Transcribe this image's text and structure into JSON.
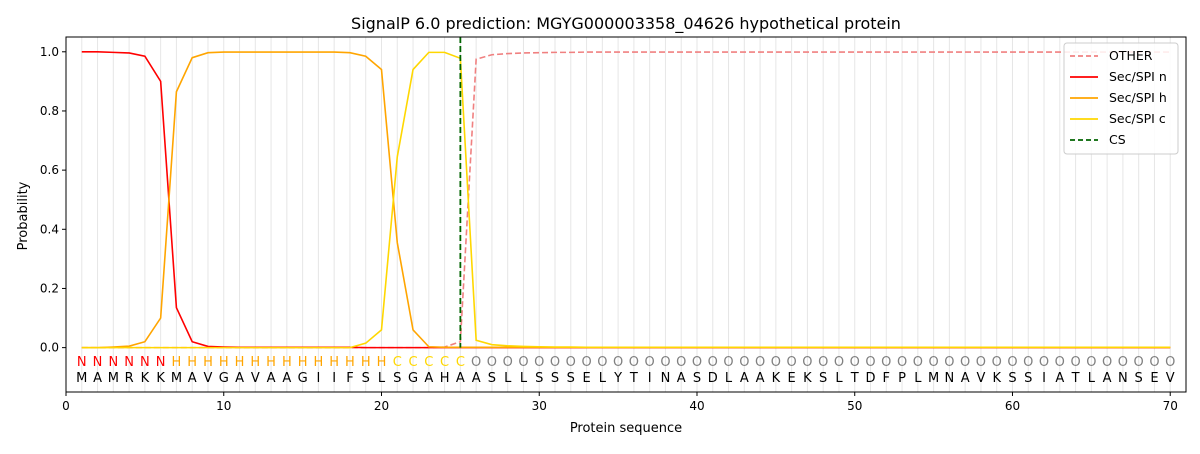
{
  "chart_data": {
    "type": "line",
    "title": "SignalP 6.0 prediction: MGYG000003358_04626 hypothetical protein",
    "xlabel": "Protein sequence",
    "ylabel": "Probability",
    "xlim": [
      0,
      71
    ],
    "ylim": [
      -0.15,
      1.05
    ],
    "xticks": [
      0,
      10,
      20,
      30,
      40,
      50,
      60,
      70
    ],
    "yticks": [
      0.0,
      0.2,
      0.4,
      0.6,
      0.8,
      1.0
    ],
    "grid": "vertical lines at each residue",
    "legend_position": "top-right",
    "cleavage_site": 25,
    "sequence": [
      "M",
      "A",
      "M",
      "R",
      "K",
      "K",
      "M",
      "A",
      "V",
      "G",
      "A",
      "V",
      "A",
      "A",
      "G",
      "I",
      "I",
      "F",
      "S",
      "L",
      "S",
      "G",
      "A",
      "H",
      "A",
      "A",
      "S",
      "L",
      "L",
      "S",
      "S",
      "S",
      "E",
      "L",
      "Y",
      "T",
      "I",
      "N",
      "A",
      "S",
      "D",
      "L",
      "A",
      "A",
      "K",
      "E",
      "K",
      "S",
      "L",
      "T",
      "D",
      "F",
      "P",
      "L",
      "M",
      "N",
      "A",
      "V",
      "K",
      "S",
      "S",
      "I",
      "A",
      "T",
      "L",
      "A",
      "N",
      "S",
      "E",
      "V"
    ],
    "labels": [
      "N",
      "N",
      "N",
      "N",
      "N",
      "N",
      "H",
      "H",
      "H",
      "H",
      "H",
      "H",
      "H",
      "H",
      "H",
      "H",
      "H",
      "H",
      "H",
      "H",
      "C",
      "C",
      "C",
      "C",
      "C",
      "O",
      "O",
      "O",
      "O",
      "O",
      "O",
      "O",
      "O",
      "O",
      "O",
      "O",
      "O",
      "O",
      "O",
      "O",
      "O",
      "O",
      "O",
      "O",
      "O",
      "O",
      "O",
      "O",
      "O",
      "O",
      "O",
      "O",
      "O",
      "O",
      "O",
      "O",
      "O",
      "O",
      "O",
      "O",
      "O",
      "O",
      "O",
      "O",
      "O",
      "O",
      "O",
      "O",
      "O",
      "O"
    ],
    "label_colors": {
      "N": "#ff0000",
      "H": "#ffa500",
      "C": "#ffd700",
      "O": "#808080"
    },
    "series": [
      {
        "name": "OTHER",
        "color": "#f08080",
        "dash": true,
        "values": [
          0,
          0,
          0,
          0,
          0,
          0,
          0,
          0,
          0,
          0,
          0,
          0,
          0,
          0,
          0,
          0,
          0,
          0,
          0,
          0,
          0,
          0,
          0,
          0.002,
          0.02,
          0.975,
          0.99,
          0.994,
          0.996,
          0.997,
          0.998,
          0.998,
          0.999,
          0.999,
          0.999,
          0.999,
          0.999,
          0.999,
          0.999,
          0.999,
          0.999,
          0.999,
          0.999,
          0.999,
          0.999,
          0.999,
          0.999,
          0.999,
          0.999,
          0.999,
          0.999,
          0.999,
          0.999,
          0.999,
          0.999,
          0.999,
          0.999,
          0.999,
          0.999,
          0.999,
          0.999,
          0.999,
          0.999,
          0.999,
          0.999,
          0.999,
          0.999,
          0.999,
          0.999,
          0.999
        ]
      },
      {
        "name": "Sec/SPI n",
        "color": "#ff0000",
        "dash": false,
        "values": [
          1.0,
          1.0,
          0.998,
          0.996,
          0.985,
          0.9,
          0.135,
          0.02,
          0.004,
          0.002,
          0.001,
          0.001,
          0.001,
          0.001,
          0.001,
          0.001,
          0.001,
          0.001,
          0,
          0,
          0,
          0,
          0,
          0,
          0,
          0,
          0,
          0,
          0,
          0,
          0,
          0,
          0,
          0,
          0,
          0,
          0,
          0,
          0,
          0,
          0,
          0,
          0,
          0,
          0,
          0,
          0,
          0,
          0,
          0,
          0,
          0,
          0,
          0,
          0,
          0,
          0,
          0,
          0,
          0,
          0,
          0,
          0,
          0,
          0,
          0,
          0,
          0,
          0,
          0
        ]
      },
      {
        "name": "Sec/SPI h",
        "color": "#ffa500",
        "dash": false,
        "values": [
          0,
          0,
          0.002,
          0.005,
          0.02,
          0.1,
          0.865,
          0.98,
          0.997,
          0.999,
          0.999,
          0.999,
          0.999,
          0.999,
          0.999,
          0.999,
          0.999,
          0.997,
          0.985,
          0.94,
          0.355,
          0.06,
          0.003,
          0.001,
          0.001,
          0.001,
          0.001,
          0.001,
          0.001,
          0.001,
          0.001,
          0.001,
          0.001,
          0.001,
          0.001,
          0.001,
          0.001,
          0.001,
          0.001,
          0.001,
          0.001,
          0.001,
          0.001,
          0.001,
          0.001,
          0.001,
          0.001,
          0.001,
          0.001,
          0.001,
          0.001,
          0.001,
          0.001,
          0.001,
          0.001,
          0.001,
          0.001,
          0.001,
          0.001,
          0.001,
          0.001,
          0.001,
          0.001,
          0.001,
          0.001,
          0.001,
          0.001,
          0.001,
          0.001,
          0.001
        ]
      },
      {
        "name": "Sec/SPI c",
        "color": "#ffd700",
        "dash": false,
        "values": [
          0,
          0,
          0,
          0,
          0,
          0,
          0,
          0,
          0,
          0,
          0,
          0,
          0,
          0,
          0,
          0,
          0,
          0,
          0.015,
          0.06,
          0.645,
          0.94,
          0.998,
          0.998,
          0.978,
          0.025,
          0.01,
          0.006,
          0.004,
          0.003,
          0.002,
          0.002,
          0.001,
          0.001,
          0.001,
          0.001,
          0.001,
          0.001,
          0.001,
          0.001,
          0.001,
          0.001,
          0.001,
          0.001,
          0.001,
          0.001,
          0.001,
          0.001,
          0.001,
          0.001,
          0.001,
          0.001,
          0.001,
          0.001,
          0.001,
          0.001,
          0.001,
          0.001,
          0.001,
          0.001,
          0.001,
          0.001,
          0.001,
          0.001,
          0.001,
          0.001,
          0.001,
          0.001,
          0.001,
          0.001
        ]
      }
    ],
    "legend": [
      {
        "label": "OTHER",
        "color": "#f08080",
        "dash": true
      },
      {
        "label": "Sec/SPI n",
        "color": "#ff0000",
        "dash": false
      },
      {
        "label": "Sec/SPI h",
        "color": "#ffa500",
        "dash": false
      },
      {
        "label": "Sec/SPI c",
        "color": "#ffd700",
        "dash": false
      },
      {
        "label": "CS",
        "color": "#006400",
        "dash": true
      }
    ]
  }
}
